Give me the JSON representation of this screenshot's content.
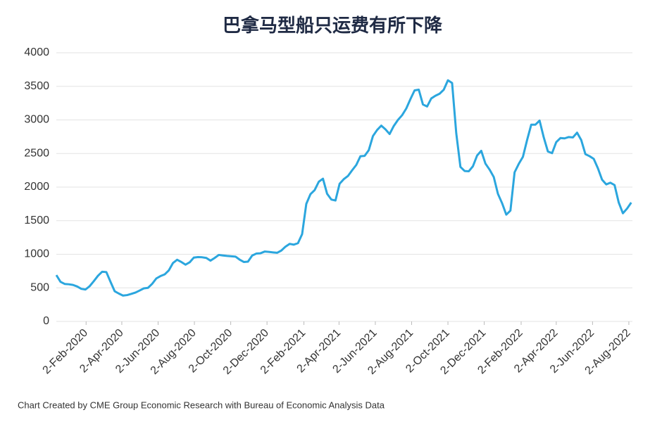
{
  "chart_data": {
    "type": "line",
    "title": "巴拿马型船只运费有所下降",
    "source": "Chart Created by CME Group Economic Research with Bureau of Economic Analysis Data",
    "color": "#2ba6de",
    "grid": true,
    "ylim": [
      0,
      4000
    ],
    "yticks": [
      0,
      500,
      1000,
      1500,
      2000,
      2500,
      3000,
      3500,
      4000
    ],
    "xlim": [
      "2019-12-14",
      "2022-08-08"
    ],
    "xticks": [
      {
        "value": "2020-02-02",
        "label": "2-Feb-2020"
      },
      {
        "value": "2020-04-02",
        "label": "2-Apr-2020"
      },
      {
        "value": "2020-06-02",
        "label": "2-Jun-2020"
      },
      {
        "value": "2020-08-02",
        "label": "2-Aug-2020"
      },
      {
        "value": "2020-10-02",
        "label": "2-Oct-2020"
      },
      {
        "value": "2020-12-02",
        "label": "2-Dec-2020"
      },
      {
        "value": "2021-02-02",
        "label": "2-Feb-2021"
      },
      {
        "value": "2021-04-02",
        "label": "2-Apr-2021"
      },
      {
        "value": "2021-06-02",
        "label": "2-Jun-2021"
      },
      {
        "value": "2021-08-02",
        "label": "2-Aug-2021"
      },
      {
        "value": "2021-10-02",
        "label": "2-Oct-2021"
      },
      {
        "value": "2021-12-02",
        "label": "2-Dec-2021"
      },
      {
        "value": "2022-02-02",
        "label": "2-Feb-2022"
      },
      {
        "value": "2022-04-02",
        "label": "2-Apr-2022"
      },
      {
        "value": "2022-06-02",
        "label": "2-Jun-2022"
      },
      {
        "value": "2022-08-02",
        "label": "2-Aug-2022"
      }
    ],
    "x": [
      "2019-12-14",
      "2019-12-21",
      "2019-12-28",
      "2020-01-04",
      "2020-01-11",
      "2020-01-18",
      "2020-01-25",
      "2020-02-01",
      "2020-02-08",
      "2020-02-15",
      "2020-02-22",
      "2020-02-29",
      "2020-03-07",
      "2020-03-14",
      "2020-03-21",
      "2020-03-28",
      "2020-04-04",
      "2020-04-11",
      "2020-04-18",
      "2020-04-25",
      "2020-05-02",
      "2020-05-09",
      "2020-05-16",
      "2020-05-23",
      "2020-05-30",
      "2020-06-06",
      "2020-06-13",
      "2020-06-20",
      "2020-06-27",
      "2020-07-04",
      "2020-07-11",
      "2020-07-18",
      "2020-07-25",
      "2020-08-01",
      "2020-08-08",
      "2020-08-15",
      "2020-08-22",
      "2020-08-29",
      "2020-09-05",
      "2020-09-12",
      "2020-09-19",
      "2020-09-26",
      "2020-10-03",
      "2020-10-10",
      "2020-10-17",
      "2020-10-24",
      "2020-10-31",
      "2020-11-07",
      "2020-11-14",
      "2020-11-21",
      "2020-11-28",
      "2020-12-05",
      "2020-12-12",
      "2020-12-19",
      "2020-12-26",
      "2021-01-02",
      "2021-01-09",
      "2021-01-16",
      "2021-01-23",
      "2021-01-30",
      "2021-02-06",
      "2021-02-13",
      "2021-02-20",
      "2021-02-27",
      "2021-03-06",
      "2021-03-13",
      "2021-03-20",
      "2021-03-27",
      "2021-04-03",
      "2021-04-10",
      "2021-04-17",
      "2021-04-24",
      "2021-05-01",
      "2021-05-08",
      "2021-05-15",
      "2021-05-22",
      "2021-05-29",
      "2021-06-05",
      "2021-06-12",
      "2021-06-19",
      "2021-06-26",
      "2021-07-03",
      "2021-07-10",
      "2021-07-17",
      "2021-07-24",
      "2021-07-31",
      "2021-08-07",
      "2021-08-14",
      "2021-08-21",
      "2021-08-28",
      "2021-09-04",
      "2021-09-11",
      "2021-09-18",
      "2021-09-25",
      "2021-10-02",
      "2021-10-09",
      "2021-10-16",
      "2021-10-23",
      "2021-10-30",
      "2021-11-06",
      "2021-11-13",
      "2021-11-20",
      "2021-11-27",
      "2021-12-04",
      "2021-12-11",
      "2021-12-18",
      "2021-12-25",
      "2022-01-01",
      "2022-01-08",
      "2022-01-15",
      "2022-01-22",
      "2022-01-29",
      "2022-02-05",
      "2022-02-12",
      "2022-02-19",
      "2022-02-26",
      "2022-03-05",
      "2022-03-12",
      "2022-03-19",
      "2022-03-26",
      "2022-04-02",
      "2022-04-09",
      "2022-04-16",
      "2022-04-23",
      "2022-04-30",
      "2022-05-07",
      "2022-05-14",
      "2022-05-21",
      "2022-05-28",
      "2022-06-04",
      "2022-06-11",
      "2022-06-18",
      "2022-06-25",
      "2022-07-02",
      "2022-07-09",
      "2022-07-16",
      "2022-07-23",
      "2022-07-30",
      "2022-08-06"
    ],
    "values": [
      690,
      590,
      558,
      553,
      543,
      520,
      485,
      475,
      525,
      600,
      680,
      740,
      735,
      590,
      450,
      415,
      385,
      392,
      410,
      430,
      460,
      492,
      500,
      560,
      640,
      675,
      700,
      760,
      870,
      918,
      885,
      845,
      880,
      950,
      958,
      955,
      945,
      905,
      945,
      990,
      982,
      975,
      970,
      965,
      920,
      885,
      890,
      980,
      1010,
      1015,
      1040,
      1035,
      1028,
      1022,
      1055,
      1113,
      1155,
      1143,
      1165,
      1300,
      1750,
      1895,
      1955,
      2080,
      2125,
      1900,
      1815,
      1800,
      2050,
      2118,
      2165,
      2250,
      2330,
      2460,
      2465,
      2550,
      2760,
      2850,
      2915,
      2860,
      2790,
      2910,
      3000,
      3070,
      3170,
      3310,
      3440,
      3450,
      3230,
      3200,
      3320,
      3360,
      3390,
      3450,
      3590,
      3550,
      2800,
      2300,
      2240,
      2235,
      2310,
      2470,
      2540,
      2350,
      2260,
      2150,
      1900,
      1760,
      1590,
      1650,
      2220,
      2345,
      2450,
      2700,
      2930,
      2930,
      2990,
      2740,
      2530,
      2505,
      2670,
      2730,
      2725,
      2745,
      2740,
      2810,
      2700,
      2490,
      2460,
      2420,
      2280,
      2110,
      2040,
      2065,
      2030,
      1770,
      1610,
      1680,
      1770
    ]
  }
}
